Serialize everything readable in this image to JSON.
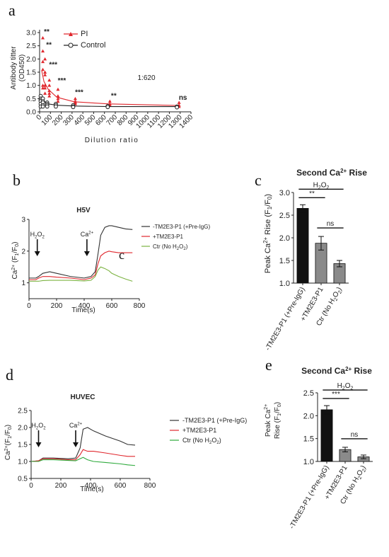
{
  "chart_data": [
    {
      "id": "a",
      "type": "scatter",
      "panel_letter": "a",
      "xlabel": "Dilution ratio",
      "ylabel": "Antibody titter (OD450)",
      "ylabel_lines": [
        "Antibody titter",
        "(OD450)"
      ],
      "xlim": [
        0,
        1400
      ],
      "ylim": [
        0,
        3.0
      ],
      "x_ticks": [
        "0",
        "100",
        "200",
        "300",
        "400",
        "500",
        "600",
        "700",
        "800",
        "900",
        "1000",
        "1100",
        "1200",
        "1300",
        "1400"
      ],
      "y_ticks": [
        "0.0",
        "0.5",
        "1.0",
        "1.5",
        "2.0",
        "2.5",
        "3.0"
      ],
      "annotation": "1:620",
      "series": [
        {
          "name": "PI",
          "color": "#e0282e",
          "marker": "triangle",
          "x": [
            20,
            40,
            80,
            160,
            320,
            640,
            1280
          ],
          "y": [
            1.55,
            1.15,
            0.85,
            0.55,
            0.38,
            0.3,
            0.24
          ],
          "points": [
            [
              20,
              2.8
            ],
            [
              20,
              2.3
            ],
            [
              20,
              1.9
            ],
            [
              20,
              1.6
            ],
            [
              20,
              1.0
            ],
            [
              20,
              0.9
            ],
            [
              40,
              2.0
            ],
            [
              40,
              1.5
            ],
            [
              40,
              1.4
            ],
            [
              40,
              1.0
            ],
            [
              40,
              0.9
            ],
            [
              40,
              0.7
            ],
            [
              80,
              1.2
            ],
            [
              80,
              1.0
            ],
            [
              80,
              0.8
            ],
            [
              80,
              0.7
            ],
            [
              80,
              0.6
            ],
            [
              160,
              0.85
            ],
            [
              160,
              0.6
            ],
            [
              160,
              0.5
            ],
            [
              160,
              0.4
            ],
            [
              320,
              0.5
            ],
            [
              320,
              0.4
            ],
            [
              320,
              0.35
            ],
            [
              320,
              0.3
            ],
            [
              640,
              0.4
            ],
            [
              640,
              0.3
            ],
            [
              640,
              0.25
            ],
            [
              1280,
              0.35
            ],
            [
              1280,
              0.25
            ],
            [
              1280,
              0.2
            ]
          ]
        },
        {
          "name": "Control",
          "color": "#222222",
          "marker": "circle",
          "x": [
            20,
            40,
            80,
            160,
            320,
            640,
            1280
          ],
          "y": [
            0.5,
            0.4,
            0.3,
            0.25,
            0.22,
            0.2,
            0.2
          ],
          "points": [
            [
              20,
              0.6
            ],
            [
              20,
              0.5
            ],
            [
              20,
              0.45
            ],
            [
              20,
              0.4
            ],
            [
              20,
              0.3
            ],
            [
              20,
              0.2
            ],
            [
              40,
              0.5
            ],
            [
              40,
              0.4
            ],
            [
              40,
              0.35
            ],
            [
              40,
              0.25
            ],
            [
              40,
              0.2
            ],
            [
              80,
              0.35
            ],
            [
              80,
              0.3
            ],
            [
              80,
              0.25
            ],
            [
              80,
              0.2
            ],
            [
              160,
              0.3
            ],
            [
              160,
              0.25
            ],
            [
              160,
              0.2
            ],
            [
              320,
              0.25
            ],
            [
              320,
              0.2
            ],
            [
              320,
              0.18
            ],
            [
              640,
              0.22
            ],
            [
              640,
              0.18
            ],
            [
              1280,
              0.2
            ],
            [
              1280,
              0.17
            ]
          ]
        }
      ],
      "significance": [
        {
          "x": 20,
          "y": 2.95,
          "label": "**"
        },
        {
          "x": 40,
          "y": 2.45,
          "label": "**"
        },
        {
          "x": 80,
          "y": 1.7,
          "label": "***"
        },
        {
          "x": 160,
          "y": 1.1,
          "label": "***"
        },
        {
          "x": 320,
          "y": 0.65,
          "label": "***"
        },
        {
          "x": 640,
          "y": 0.52,
          "label": "**"
        },
        {
          "x": 1280,
          "y": 0.45,
          "label": "ns"
        }
      ]
    },
    {
      "id": "b",
      "type": "line",
      "panel_letter": "b",
      "title": "H5V",
      "xlabel": "Time(s)",
      "ylabel": "Ca2+ (F1/F0)",
      "xlim": [
        0,
        800
      ],
      "ylim": [
        0.5,
        3.0
      ],
      "x_ticks": [
        "0",
        "200",
        "400",
        "600",
        "800"
      ],
      "y_ticks": [
        "1",
        "2",
        "3"
      ],
      "stray_letter": "c",
      "arrows": [
        {
          "x": 60,
          "label": "H2O2"
        },
        {
          "x": 420,
          "label": "Ca2+"
        }
      ],
      "series": [
        {
          "name": "-TM2E3-P1 (+Pre-IgG)",
          "color": "#333333",
          "x": [
            0,
            50,
            70,
            100,
            150,
            200,
            300,
            400,
            450,
            480,
            500,
            520,
            550,
            580,
            600,
            650,
            700,
            750
          ],
          "y": [
            1.15,
            1.15,
            1.2,
            1.3,
            1.35,
            1.3,
            1.2,
            1.15,
            1.2,
            1.35,
            1.9,
            2.5,
            2.75,
            2.8,
            2.8,
            2.75,
            2.7,
            2.68
          ]
        },
        {
          "name": "+TM2E3-P1",
          "color": "#e0282e",
          "x": [
            0,
            50,
            70,
            100,
            150,
            200,
            300,
            400,
            450,
            480,
            500,
            520,
            550,
            580,
            600,
            650,
            700,
            750
          ],
          "y": [
            1.1,
            1.1,
            1.15,
            1.2,
            1.2,
            1.18,
            1.15,
            1.1,
            1.15,
            1.25,
            1.6,
            1.85,
            1.95,
            2.0,
            1.98,
            1.95,
            1.95,
            1.95
          ]
        },
        {
          "name": "Ctr (No H2O2)",
          "color": "#7cb342",
          "x": [
            0,
            50,
            70,
            100,
            150,
            200,
            300,
            400,
            450,
            480,
            500,
            520,
            550,
            580,
            600,
            650,
            700,
            750
          ],
          "y": [
            1.05,
            1.05,
            1.05,
            1.07,
            1.08,
            1.08,
            1.08,
            1.06,
            1.08,
            1.2,
            1.4,
            1.5,
            1.45,
            1.38,
            1.3,
            1.2,
            1.12,
            1.05
          ]
        }
      ]
    },
    {
      "id": "c",
      "type": "bar",
      "panel_letter": "c",
      "title": "Second Ca2+ Rise",
      "ylabel": "Peak Ca2+ Rise (F1/F0)",
      "ylim": [
        1.0,
        3.0
      ],
      "y_ticks": [
        "1.0",
        "1.5",
        "2.0",
        "2.5",
        "3.0"
      ],
      "categories": [
        "-TM2E3-P1 (+Pre-IgG)",
        "+TM2E3-P1",
        "Ctr (No H2O2)"
      ],
      "values": [
        2.65,
        1.88,
        1.43
      ],
      "errors": [
        0.08,
        0.15,
        0.07
      ],
      "colors": [
        "#111111",
        "#8a8a8a",
        "#8a8a8a"
      ],
      "brackets": [
        {
          "from": 0,
          "to": 2,
          "label": "H2O2"
        },
        {
          "from": 0,
          "to": 1,
          "label": "**"
        },
        {
          "from": 1,
          "to": 2,
          "label": "ns"
        }
      ]
    },
    {
      "id": "d",
      "type": "line",
      "panel_letter": "d",
      "title": "HUVEC",
      "xlabel": "Time(s)",
      "ylabel": "Ca2+ (F1/F0)",
      "xlim": [
        0,
        800
      ],
      "ylim": [
        0.5,
        2.5
      ],
      "x_ticks": [
        "0",
        "200",
        "400",
        "600",
        "800"
      ],
      "y_ticks": [
        "0.5",
        "1.0",
        "1.5",
        "2.0",
        "2.5"
      ],
      "arrows": [
        {
          "x": 50,
          "label": "H2O2"
        },
        {
          "x": 300,
          "label": "Ca2+"
        }
      ],
      "series": [
        {
          "name": "-TM2E3-P1 (+Pre-IgG)",
          "color": "#333333",
          "x": [
            0,
            50,
            80,
            150,
            250,
            300,
            330,
            350,
            380,
            420,
            500,
            600,
            650,
            700
          ],
          "y": [
            1.0,
            1.02,
            1.1,
            1.1,
            1.08,
            1.1,
            1.4,
            1.95,
            2.0,
            1.9,
            1.75,
            1.6,
            1.5,
            1.48
          ]
        },
        {
          "name": "+TM2E3-P1",
          "color": "#e0282e",
          "x": [
            0,
            50,
            80,
            150,
            250,
            300,
            330,
            350,
            380,
            420,
            500,
            600,
            650,
            700
          ],
          "y": [
            1.0,
            1.02,
            1.08,
            1.08,
            1.05,
            1.05,
            1.2,
            1.35,
            1.3,
            1.3,
            1.25,
            1.18,
            1.15,
            1.15
          ]
        },
        {
          "name": "Ctr (No H2O2)",
          "color": "#2eaa3c",
          "x": [
            0,
            50,
            80,
            150,
            250,
            300,
            330,
            350,
            380,
            420,
            500,
            600,
            650,
            700
          ],
          "y": [
            1.0,
            1.0,
            1.05,
            1.05,
            1.03,
            1.02,
            1.08,
            1.12,
            1.05,
            1.0,
            0.97,
            0.93,
            0.9,
            0.88
          ]
        }
      ]
    },
    {
      "id": "e",
      "type": "bar",
      "panel_letter": "e",
      "title": "Second Ca2+ Rise",
      "ylabel": "Peak Ca2+ Rise (F1/F0)",
      "ylim": [
        1.0,
        2.5
      ],
      "y_ticks": [
        "1.0",
        "1.5",
        "2.0",
        "2.5"
      ],
      "categories": [
        "-TM2E3-P1 (+Pre-IgG)",
        "+TM2E3-P1",
        "Ctr (No H2O2)"
      ],
      "values": [
        2.13,
        1.26,
        1.1
      ],
      "errors": [
        0.09,
        0.05,
        0.04
      ],
      "colors": [
        "#111111",
        "#8a8a8a",
        "#8a8a8a"
      ],
      "brackets": [
        {
          "from": 0,
          "to": 2,
          "label": "H2O2"
        },
        {
          "from": 0,
          "to": 1,
          "label": "***"
        },
        {
          "from": 1,
          "to": 2,
          "label": "ns"
        }
      ]
    }
  ]
}
